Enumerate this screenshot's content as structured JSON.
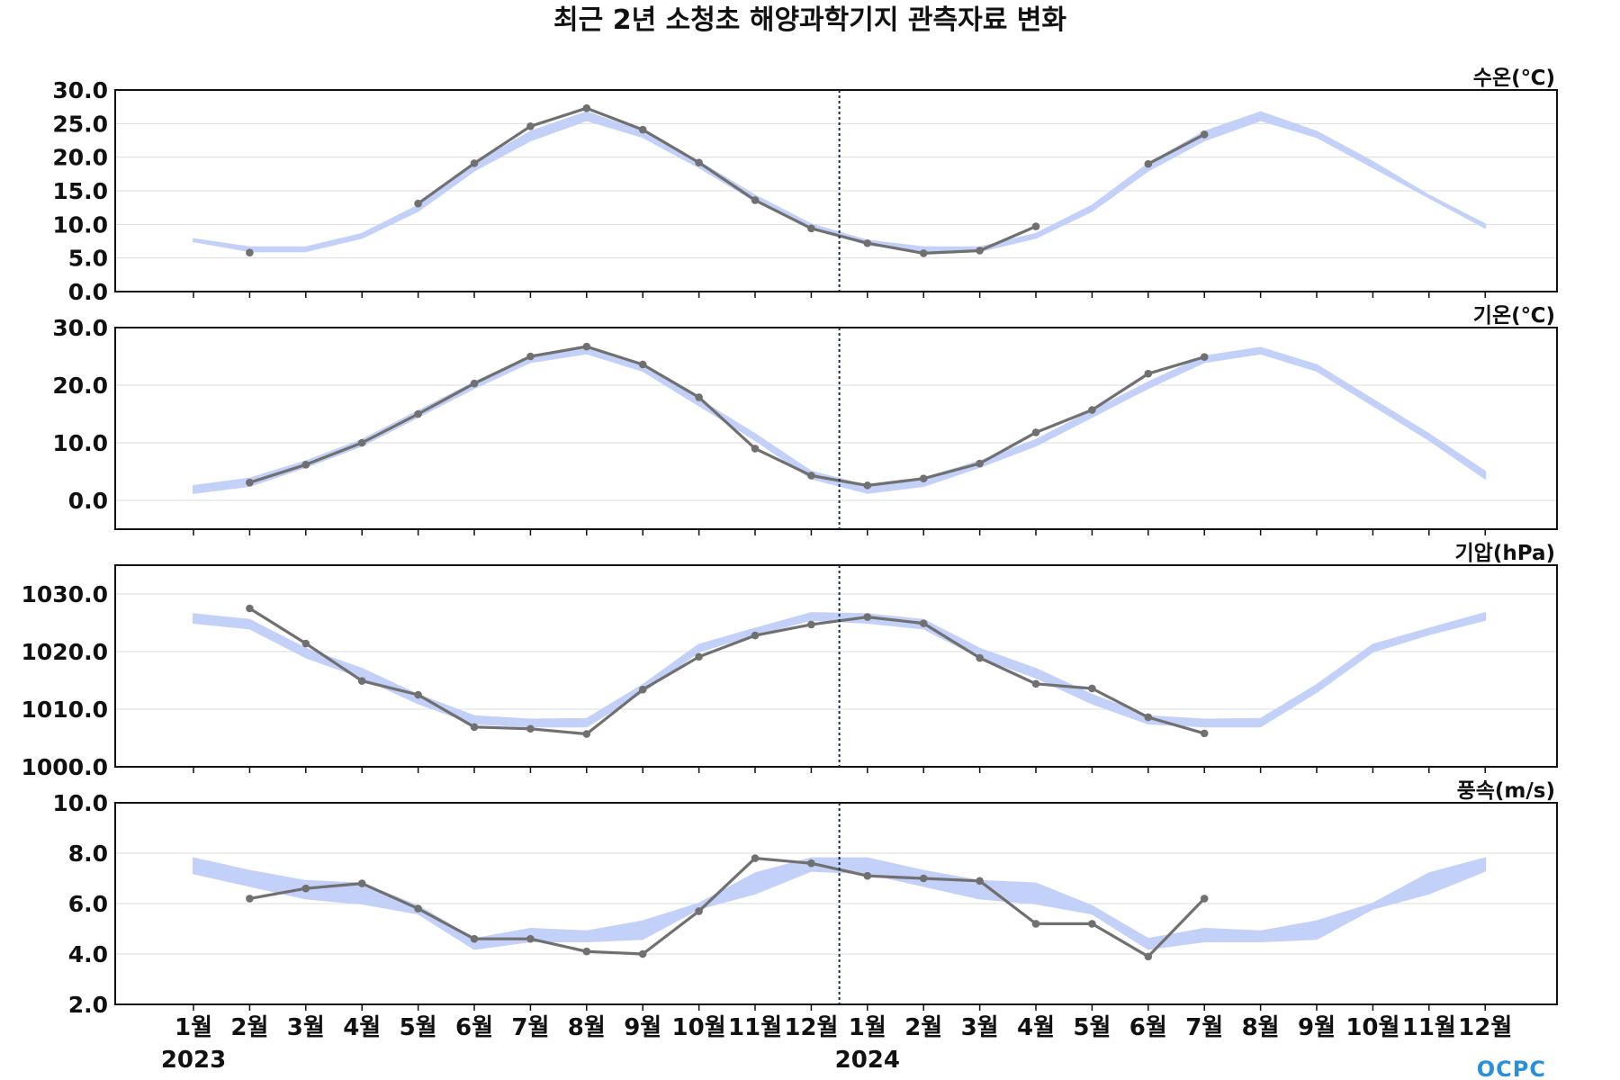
{
  "chart_data": {
    "type": "line",
    "title": "최근 2년 소청초 해양과학기지 관측자료 변화",
    "x_labels": [
      "1월",
      "2월",
      "3월",
      "4월",
      "5월",
      "6월",
      "7월",
      "8월",
      "9월",
      "10월",
      "11월",
      "12월",
      "1월",
      "2월",
      "3월",
      "4월",
      "5월",
      "6월",
      "7월",
      "8월",
      "9월",
      "10월",
      "11월",
      "12월"
    ],
    "year_labels": [
      {
        "label": "2023",
        "at_index": 0
      },
      {
        "label": "2024",
        "at_index": 12
      }
    ],
    "divider_index": 11.5,
    "grid": true,
    "colors": {
      "observed": "#707070",
      "normal_band": "#c3d0f7",
      "divider": "#1a2a55",
      "axis": "#111111",
      "grid": "#dddddd"
    },
    "panels": [
      {
        "unit": "수온(℃)",
        "ylim": [
          0,
          30
        ],
        "yticks": [
          "0.0",
          "5.0",
          "10.0",
          "15.0",
          "20.0",
          "25.0",
          "30.0"
        ],
        "series": [
          {
            "kind": "band",
            "low": [
              7.5,
              6.0,
              6.0,
              8.0,
              12.0,
              18.0,
              22.5,
              25.5,
              23.0,
              18.5,
              13.5,
              9.5,
              7.0,
              6.0,
              6.0,
              8.0,
              12.0,
              18.0,
              22.5,
              25.5,
              23.0,
              18.5,
              14.0,
              9.5
            ],
            "high": [
              7.8,
              6.6,
              6.6,
              8.6,
              12.8,
              19.0,
              23.8,
              26.7,
              23.8,
              19.3,
              14.3,
              10.0,
              7.6,
              6.6,
              6.6,
              8.6,
              12.8,
              19.0,
              23.8,
              26.7,
              23.8,
              19.3,
              14.3,
              10.0
            ]
          },
          {
            "kind": "line",
            "values": [
              null,
              5.8,
              null,
              null,
              13.1,
              19.1,
              24.6,
              27.3,
              24.1,
              19.2,
              13.6,
              9.4,
              7.2,
              5.7,
              6.1,
              9.7,
              null,
              19.0,
              23.4,
              null,
              null,
              null,
              null,
              null
            ]
          }
        ]
      },
      {
        "unit": "기온(℃)",
        "ylim": [
          -5,
          30
        ],
        "yticks": [
          "0.0",
          "10.0",
          "20.0",
          "30.0"
        ],
        "series": [
          {
            "kind": "band",
            "low": [
              1.3,
              2.5,
              5.8,
              9.5,
              14.5,
              19.5,
              24.0,
              25.5,
              22.5,
              16.5,
              10.5,
              3.8,
              1.3,
              2.5,
              5.8,
              9.5,
              14.5,
              19.5,
              24.0,
              25.5,
              22.5,
              16.5,
              10.5,
              3.8
            ],
            "high": [
              2.5,
              3.8,
              6.8,
              10.5,
              15.5,
              20.5,
              25.0,
              26.5,
              23.5,
              17.5,
              11.5,
              5.0,
              2.5,
              3.8,
              6.8,
              10.5,
              15.5,
              20.5,
              25.0,
              26.5,
              23.5,
              17.5,
              11.5,
              5.0
            ]
          },
          {
            "kind": "line",
            "values": [
              null,
              3.1,
              6.2,
              10.0,
              15.0,
              20.3,
              25.0,
              26.7,
              23.6,
              17.9,
              9.0,
              4.3,
              2.6,
              3.8,
              6.4,
              11.8,
              15.7,
              22.0,
              24.9,
              null,
              null,
              null,
              null,
              null
            ]
          }
        ]
      },
      {
        "unit": "기압(hPa)",
        "ylim": [
          1000,
          1035
        ],
        "yticks": [
          "1000.0",
          "1010.0",
          "1020.0",
          "1030.0"
        ],
        "series": [
          {
            "kind": "band",
            "low": [
              1025.0,
              1024.0,
              1019.0,
              1015.5,
              1011.0,
              1007.5,
              1007.0,
              1007.0,
              1013.0,
              1020.0,
              1023.0,
              1025.5,
              1025.0,
              1024.0,
              1019.0,
              1015.5,
              1011.0,
              1007.5,
              1007.0,
              1007.0,
              1013.0,
              1020.0,
              1023.0,
              1025.5
            ],
            "high": [
              1026.5,
              1025.5,
              1020.5,
              1017.0,
              1012.5,
              1008.8,
              1008.2,
              1008.3,
              1014.2,
              1021.2,
              1024.0,
              1026.7,
              1026.5,
              1025.5,
              1020.5,
              1017.0,
              1012.5,
              1008.8,
              1008.2,
              1008.3,
              1014.2,
              1021.2,
              1024.0,
              1026.7
            ]
          },
          {
            "kind": "line",
            "values": [
              null,
              1027.5,
              1021.4,
              1014.9,
              1012.5,
              1006.9,
              1006.6,
              1005.7,
              1013.4,
              1019.1,
              1022.8,
              1024.7,
              1026.0,
              1024.9,
              1018.9,
              1014.4,
              1013.6,
              1008.6,
              1005.8,
              null,
              null,
              null,
              null,
              null
            ]
          }
        ]
      },
      {
        "unit": "풍속(m/s)",
        "ylim": [
          2,
          10
        ],
        "yticks": [
          "2.0",
          "4.0",
          "6.0",
          "8.0",
          "10.0"
        ],
        "series": [
          {
            "kind": "band",
            "low": [
              7.2,
              6.7,
              6.2,
              6.0,
              5.6,
              4.2,
              4.5,
              4.5,
              4.6,
              5.8,
              6.4,
              7.3,
              7.2,
              6.7,
              6.2,
              6.0,
              5.6,
              4.2,
              4.5,
              4.5,
              4.6,
              5.8,
              6.4,
              7.3
            ],
            "high": [
              7.8,
              7.3,
              6.9,
              6.8,
              5.9,
              4.6,
              5.0,
              4.9,
              5.3,
              6.0,
              7.2,
              7.8,
              7.8,
              7.3,
              6.9,
              6.8,
              5.9,
              4.6,
              5.0,
              4.9,
              5.3,
              6.0,
              7.2,
              7.8
            ]
          },
          {
            "kind": "line",
            "values": [
              null,
              6.2,
              6.6,
              6.8,
              5.8,
              4.6,
              4.6,
              4.1,
              4.0,
              5.7,
              7.8,
              7.6,
              7.1,
              7.0,
              6.9,
              5.2,
              5.2,
              3.9,
              6.2,
              null,
              null,
              null,
              null,
              null
            ]
          }
        ]
      }
    ]
  },
  "logo": {
    "text": "OCPC",
    "color": "#2a8fd6"
  }
}
